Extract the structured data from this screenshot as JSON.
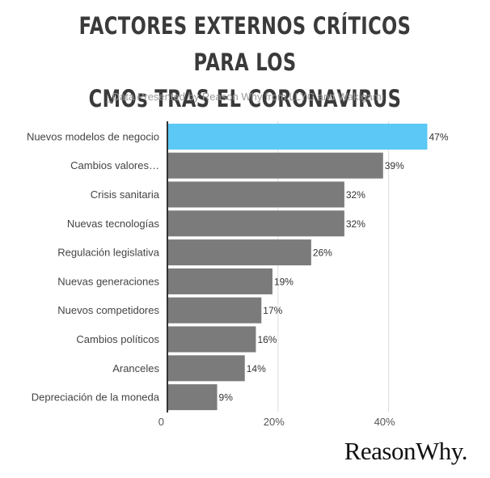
{
  "header": {
    "title_line1": "FACTORES EXTERNOS CRÍTICOS PARA LOS",
    "title_line2": "CMOs TRAS EL CORONAVIRUS",
    "subtitle": "_Data Presented by Reason Why from LLYC and Wakigami"
  },
  "brand": {
    "logo_text": "ReasonWhy."
  },
  "colors": {
    "highlight": "#5bc8f5",
    "bar": "#7b7b7b",
    "grid": "#dddddd",
    "axis": "#333333"
  },
  "chart_data": {
    "type": "bar",
    "orientation": "horizontal",
    "title": "FACTORES EXTERNOS CRÍTICOS PARA LOS CMOs TRAS EL CORONAVIRUS",
    "subtitle": "_Data Presented by Reason Why from LLYC and Wakigami",
    "categories": [
      "Nuevos modelos de negocio",
      "Cambios valores…",
      "Crisis sanitaria",
      "Nuevas tecnologías",
      "Regulación legislativa",
      "Nuevas generaciones",
      "Nuevos competidores",
      "Cambios políticos",
      "Aranceles",
      "Depreciación de la moneda"
    ],
    "values": [
      47,
      39,
      32,
      32,
      26,
      19,
      17,
      16,
      14,
      9
    ],
    "value_labels": [
      "47%",
      "39%",
      "32%",
      "32%",
      "26%",
      "19%",
      "17%",
      "16%",
      "14%",
      "9%"
    ],
    "highlight_index": 0,
    "xlim": [
      0,
      50
    ],
    "xticks": [
      0,
      20,
      40
    ],
    "xtick_labels": [
      "0",
      "20%",
      "40%"
    ],
    "grid": true,
    "xlabel": "",
    "ylabel": ""
  }
}
